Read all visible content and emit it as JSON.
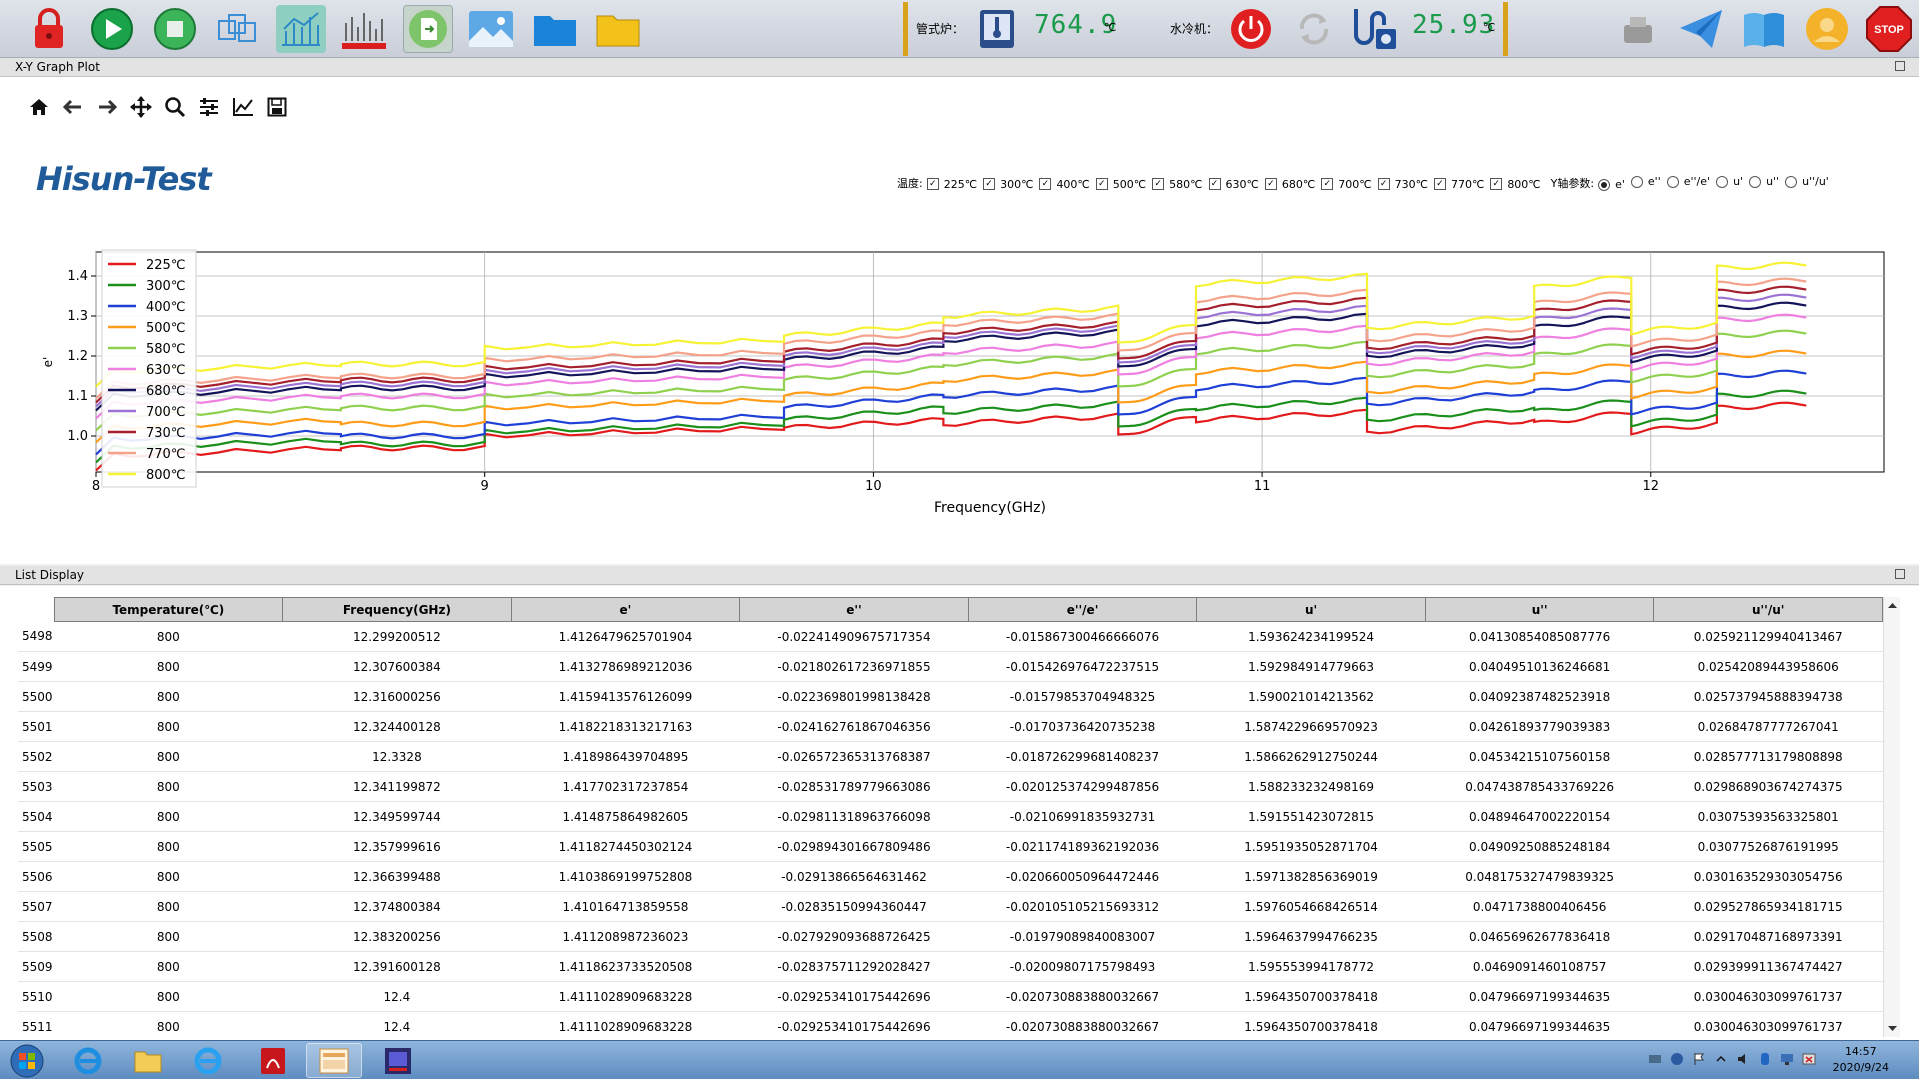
{
  "toolbar": {
    "furnace_label": "管式炉：",
    "furnace_value": "764.9",
    "furnace_unit": "℃",
    "chiller_label": "水冷机：",
    "chiller_value": "25.93",
    "chiller_unit": "℃",
    "stop_label": "STOP"
  },
  "plot_panel": {
    "title": "X-Y Graph Plot",
    "logo": "Hisun-Test"
  },
  "filters": {
    "temp_label": "温度:",
    "temperatures": [
      "225℃",
      "300℃",
      "400℃",
      "500℃",
      "580℃",
      "630℃",
      "680℃",
      "700℃",
      "730℃",
      "770℃",
      "800℃"
    ],
    "y_label": "Y轴参数:",
    "y_options": [
      "e'",
      "e''",
      "e''/e'",
      "u'",
      "u''",
      "u''/u'"
    ],
    "y_selected": "e'"
  },
  "chart_data": {
    "type": "line",
    "xlabel": "Frequency(GHz)",
    "ylabel": "e'",
    "xlim": [
      8,
      12.6
    ],
    "ylim": [
      0.91,
      1.46
    ],
    "xticks": [
      "8",
      "9",
      "10",
      "11",
      "12"
    ],
    "yticks": [
      "1.0",
      "1.1",
      "1.2",
      "1.3",
      "1.4"
    ],
    "legend_position": "upper-left",
    "grid": true,
    "segment_edges_ghz": [
      8.0,
      8.63,
      9.0,
      9.77,
      10.18,
      10.63,
      10.83,
      11.27,
      11.7,
      11.95,
      12.17,
      12.4
    ],
    "series": [
      {
        "name": "225℃",
        "color": "#e31a1c",
        "levels": [
          0.95,
          0.97,
          1.0,
          1.02,
          1.03,
          1.0,
          1.04,
          1.01,
          1.03,
          1.01,
          1.07
        ],
        "step": [
          0.02,
          0.0,
          0.02,
          0.02,
          0.02,
          0.05,
          0.02,
          0.03,
          0.03,
          0.02,
          0.01
        ]
      },
      {
        "name": "300℃",
        "color": "#1a8f1a",
        "levels": [
          0.97,
          0.98,
          1.01,
          1.04,
          1.06,
          1.02,
          1.07,
          1.04,
          1.06,
          1.03,
          1.1
        ],
        "step": [
          0.02,
          0.0,
          0.02,
          0.03,
          0.02,
          0.05,
          0.02,
          0.03,
          0.03,
          0.02,
          0.01
        ]
      },
      {
        "name": "400℃",
        "color": "#1f3fd6",
        "levels": [
          0.99,
          1.0,
          1.03,
          1.07,
          1.1,
          1.05,
          1.12,
          1.08,
          1.11,
          1.06,
          1.15
        ],
        "step": [
          0.02,
          0.0,
          0.02,
          0.03,
          0.02,
          0.05,
          0.02,
          0.03,
          0.03,
          0.02,
          0.01
        ]
      },
      {
        "name": "500℃",
        "color": "#ff9d1a",
        "levels": [
          1.02,
          1.03,
          1.07,
          1.1,
          1.14,
          1.08,
          1.16,
          1.11,
          1.15,
          1.1,
          1.2
        ],
        "step": [
          0.02,
          0.0,
          0.02,
          0.03,
          0.02,
          0.05,
          0.02,
          0.03,
          0.03,
          0.02,
          0.01
        ]
      },
      {
        "name": "580℃",
        "color": "#8fd14f",
        "levels": [
          1.05,
          1.07,
          1.1,
          1.14,
          1.18,
          1.12,
          1.21,
          1.15,
          1.2,
          1.14,
          1.25
        ],
        "step": [
          0.02,
          0.0,
          0.02,
          0.03,
          0.02,
          0.05,
          0.02,
          0.03,
          0.03,
          0.02,
          0.01
        ]
      },
      {
        "name": "630℃",
        "color": "#ef7fe0",
        "levels": [
          1.08,
          1.1,
          1.13,
          1.17,
          1.21,
          1.15,
          1.25,
          1.18,
          1.24,
          1.17,
          1.29
        ],
        "step": [
          0.02,
          0.0,
          0.02,
          0.03,
          0.02,
          0.05,
          0.02,
          0.03,
          0.03,
          0.02,
          0.01
        ]
      },
      {
        "name": "680℃",
        "color": "#14145a",
        "levels": [
          1.1,
          1.12,
          1.15,
          1.19,
          1.24,
          1.17,
          1.28,
          1.2,
          1.27,
          1.19,
          1.32
        ],
        "step": [
          0.02,
          0.0,
          0.02,
          0.03,
          0.02,
          0.05,
          0.02,
          0.03,
          0.03,
          0.02,
          0.01
        ]
      },
      {
        "name": "700℃",
        "color": "#9b73d4",
        "levels": [
          1.11,
          1.13,
          1.16,
          1.2,
          1.25,
          1.18,
          1.3,
          1.21,
          1.29,
          1.2,
          1.34
        ],
        "step": [
          0.02,
          0.0,
          0.02,
          0.03,
          0.02,
          0.05,
          0.02,
          0.03,
          0.03,
          0.02,
          0.01
        ]
      },
      {
        "name": "730℃",
        "color": "#a51f2c",
        "levels": [
          1.12,
          1.14,
          1.17,
          1.21,
          1.26,
          1.19,
          1.32,
          1.22,
          1.31,
          1.21,
          1.36
        ],
        "step": [
          0.02,
          0.0,
          0.02,
          0.03,
          0.02,
          0.05,
          0.02,
          0.03,
          0.03,
          0.02,
          0.01
        ]
      },
      {
        "name": "770℃",
        "color": "#f4a38a",
        "levels": [
          1.13,
          1.15,
          1.19,
          1.23,
          1.28,
          1.21,
          1.34,
          1.24,
          1.33,
          1.23,
          1.38
        ],
        "step": [
          0.02,
          0.0,
          0.02,
          0.03,
          0.02,
          0.05,
          0.02,
          0.03,
          0.03,
          0.02,
          0.01
        ]
      },
      {
        "name": "800℃",
        "color": "#f6f234",
        "levels": [
          1.16,
          1.18,
          1.22,
          1.25,
          1.3,
          1.23,
          1.38,
          1.27,
          1.37,
          1.26,
          1.42
        ],
        "step": [
          0.02,
          0.0,
          0.02,
          0.03,
          0.02,
          0.05,
          0.02,
          0.03,
          0.03,
          0.02,
          0.01
        ]
      }
    ]
  },
  "list_panel": {
    "title": "List Display",
    "columns": [
      "Temperature(℃)",
      "Frequency(GHz)",
      "e'",
      "e''",
      "e''/e'",
      "u'",
      "u''",
      "u''/u'"
    ],
    "rows": [
      [
        "5498",
        "800",
        "12.299200512",
        "1.4126479625701904",
        "-0.022414909675717354",
        "-0.015867300466666076",
        "1.593624234199524",
        "0.04130854085087776",
        "0.025921129940413467"
      ],
      [
        "5499",
        "800",
        "12.307600384",
        "1.4132786989212036",
        "-0.021802617236971855",
        "-0.015426976472237515",
        "1.592984914779663",
        "0.04049510136246681",
        "0.02542089443958606"
      ],
      [
        "5500",
        "800",
        "12.316000256",
        "1.4159413576126099",
        "-0.022369801998138428",
        "-0.01579853704948325",
        "1.590021014213562",
        "0.04092387482523918",
        "0.025737945888394738"
      ],
      [
        "5501",
        "800",
        "12.324400128",
        "1.4182218313217163",
        "-0.024162761867046356",
        "-0.01703736420735238",
        "1.5874229669570923",
        "0.04261893779039383",
        "0.02684787777267041"
      ],
      [
        "5502",
        "800",
        "12.3328",
        "1.418986439704895",
        "-0.026572365313768387",
        "-0.018726299681408237",
        "1.5866262912750244",
        "0.04534215107560158",
        "0.028577713179808898"
      ],
      [
        "5503",
        "800",
        "12.341199872",
        "1.417702317237854",
        "-0.028531789779663086",
        "-0.020125374299487856",
        "1.588233232498169",
        "0.047438785433769226",
        "0.029868903674274375"
      ],
      [
        "5504",
        "800",
        "12.349599744",
        "1.414875864982605",
        "-0.029811318963766098",
        "-0.02106991835932731",
        "1.591551423072815",
        "0.04894647002220154",
        "0.03075393563325801"
      ],
      [
        "5505",
        "800",
        "12.357999616",
        "1.4118274450302124",
        "-0.029894301667809486",
        "-0.021174189362192036",
        "1.5951935052871704",
        "0.04909250885248184",
        "0.03077526876191995"
      ],
      [
        "5506",
        "800",
        "12.366399488",
        "1.4103869199752808",
        "-0.02913866564631462",
        "-0.020660050964472446",
        "1.5971382856369019",
        "0.048175327479839325",
        "0.030163529303054756"
      ],
      [
        "5507",
        "800",
        "12.374800384",
        "1.410164713859558",
        "-0.02835150994360447",
        "-0.020105105215693312",
        "1.5976054668426514",
        "0.0471738800406456",
        "0.029527865934181715"
      ],
      [
        "5508",
        "800",
        "12.383200256",
        "1.411208987236023",
        "-0.027929093688726425",
        "-0.01979089840083007",
        "1.5964637994766235",
        "0.04656962677836418",
        "0.029170487168973391"
      ],
      [
        "5509",
        "800",
        "12.391600128",
        "1.4118623733520508",
        "-0.028375711292028427",
        "-0.02009807175798493",
        "1.595553994178772",
        "0.0469091460108757",
        "0.029399911367474427"
      ],
      [
        "5510",
        "800",
        "12.4",
        "1.4111028909683228",
        "-0.029253410175442696",
        "-0.020730883880032667",
        "1.5964350700378418",
        "0.04796697199344635",
        "0.030046303099761737"
      ],
      [
        "5511",
        "800",
        "12.4",
        "1.4111028909683228",
        "-0.029253410175442696",
        "-0.020730883880032667",
        "1.5964350700378418",
        "0.04796697199344635",
        "0.030046303099761737"
      ]
    ]
  },
  "taskbar": {
    "time": "14:57",
    "date": "2020/9/24"
  }
}
